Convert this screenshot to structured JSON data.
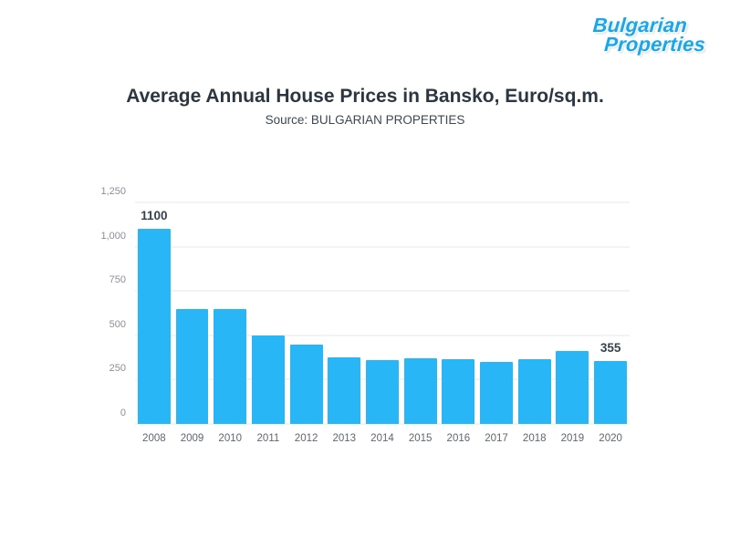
{
  "logo": {
    "line1": "Bulgarian",
    "line2": "Properties"
  },
  "title": "Average Annual House Prices in Bansko, Euro/sq.m.",
  "subtitle": "Source: BULGARIAN PROPERTIES",
  "colors": {
    "bar": "#29b6f6",
    "logo": "#18a7e9",
    "gridline": "#e6e8ea",
    "title_text": "#2b3640",
    "axis_text": "#8a8f98"
  },
  "chart_data": {
    "type": "bar",
    "title": "Average Annual House Prices in Bansko, Euro/sq.m.",
    "subtitle": "Source: BULGARIAN PROPERTIES",
    "categories": [
      "2008",
      "2009",
      "2010",
      "2011",
      "2012",
      "2013",
      "2014",
      "2015",
      "2016",
      "2017",
      "2018",
      "2019",
      "2020"
    ],
    "values": [
      1100,
      650,
      650,
      500,
      450,
      375,
      360,
      370,
      365,
      350,
      365,
      410,
      355
    ],
    "ylim": [
      0,
      1250
    ],
    "y_ticks": [
      {
        "value": 1250,
        "label": "1,250"
      },
      {
        "value": 1000,
        "label": "1,000"
      },
      {
        "value": 750,
        "label": "750"
      },
      {
        "value": 500,
        "label": "500"
      },
      {
        "value": 250,
        "label": "250"
      },
      {
        "value": 0,
        "label": "0"
      }
    ],
    "annotations": [
      {
        "index": 0,
        "label": "1100"
      },
      {
        "index": 12,
        "label": "355"
      }
    ],
    "grid": true,
    "legend": false,
    "xlabel": "",
    "ylabel": ""
  }
}
